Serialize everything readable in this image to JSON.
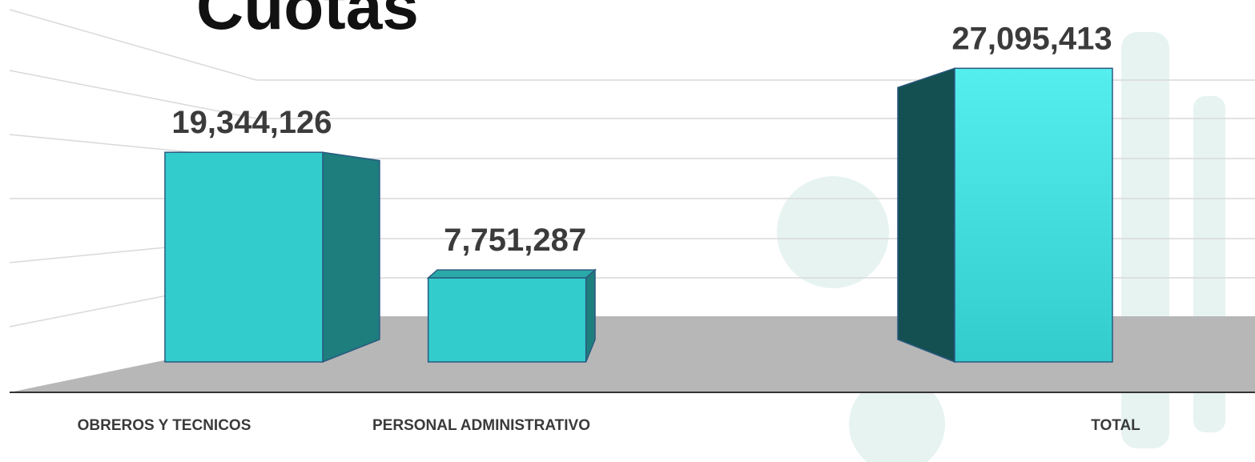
{
  "chart_data": {
    "type": "bar3d",
    "title": "Cuotas",
    "categories": [
      "OBREROS Y TECNICOS",
      "PERSONAL ADMINISTRATIVO",
      null,
      "TOTAL"
    ],
    "values": [
      19344126,
      7751287,
      null,
      27095413
    ],
    "value_labels": [
      "19,344,126",
      "7,751,287",
      null,
      "27,095,413"
    ],
    "color": "#33cccc",
    "ylim": [
      0,
      30000000
    ]
  }
}
